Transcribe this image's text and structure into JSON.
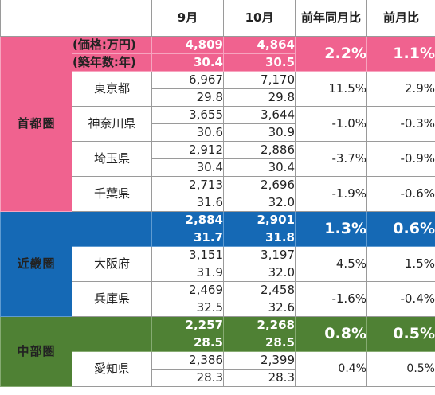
{
  "header": {
    "col_sep": "9月",
    "col_oct": "10月",
    "col_yoy": "前年同月比",
    "col_mom": "前月比"
  },
  "units": {
    "price": "(価格:万円)",
    "age": "(築年数:年)"
  },
  "regions": {
    "shutoken": {
      "label": "首都圏",
      "color": "#f0628f",
      "summary": {
        "price_sep": "4,809",
        "price_oct": "4,864",
        "age_sep": "30.4",
        "age_oct": "30.5",
        "yoy": "2.2%",
        "mom": "1.1%"
      },
      "prefs": [
        {
          "name": "東京都",
          "price_sep": "6,967",
          "price_oct": "7,170",
          "age_sep": "29.8",
          "age_oct": "29.8",
          "yoy": "11.5%",
          "mom": "2.9%"
        },
        {
          "name": "神奈川県",
          "price_sep": "3,655",
          "price_oct": "3,644",
          "age_sep": "30.6",
          "age_oct": "30.9",
          "yoy": "-1.0%",
          "mom": "-0.3%"
        },
        {
          "name": "埼玉県",
          "price_sep": "2,912",
          "price_oct": "2,886",
          "age_sep": "30.4",
          "age_oct": "30.4",
          "yoy": "-3.7%",
          "mom": "-0.9%"
        },
        {
          "name": "千葉県",
          "price_sep": "2,713",
          "price_oct": "2,696",
          "age_sep": "31.6",
          "age_oct": "32.0",
          "yoy": "-1.9%",
          "mom": "-0.6%"
        }
      ]
    },
    "kinki": {
      "label": "近畿圏",
      "color": "#1569b5",
      "summary": {
        "price_sep": "2,884",
        "price_oct": "2,901",
        "age_sep": "31.7",
        "age_oct": "31.8",
        "yoy": "1.3%",
        "mom": "0.6%"
      },
      "prefs": [
        {
          "name": "大阪府",
          "price_sep": "3,151",
          "price_oct": "3,197",
          "age_sep": "31.9",
          "age_oct": "32.0",
          "yoy": "4.5%",
          "mom": "1.5%"
        },
        {
          "name": "兵庫県",
          "price_sep": "2,469",
          "price_oct": "2,458",
          "age_sep": "32.5",
          "age_oct": "32.6",
          "yoy": "-1.6%",
          "mom": "-0.4%"
        }
      ]
    },
    "chubu": {
      "label": "中部圏",
      "color": "#4f8134",
      "summary": {
        "price_sep": "2,257",
        "price_oct": "2,268",
        "age_sep": "28.5",
        "age_oct": "28.5",
        "yoy": "0.8%",
        "mom": "0.5%"
      },
      "prefs": [
        {
          "name": "愛知県",
          "price_sep": "2,386",
          "price_oct": "2,399",
          "age_sep": "28.3",
          "age_oct": "28.3",
          "yoy": "0.4%",
          "mom": "0.5%"
        }
      ]
    }
  }
}
